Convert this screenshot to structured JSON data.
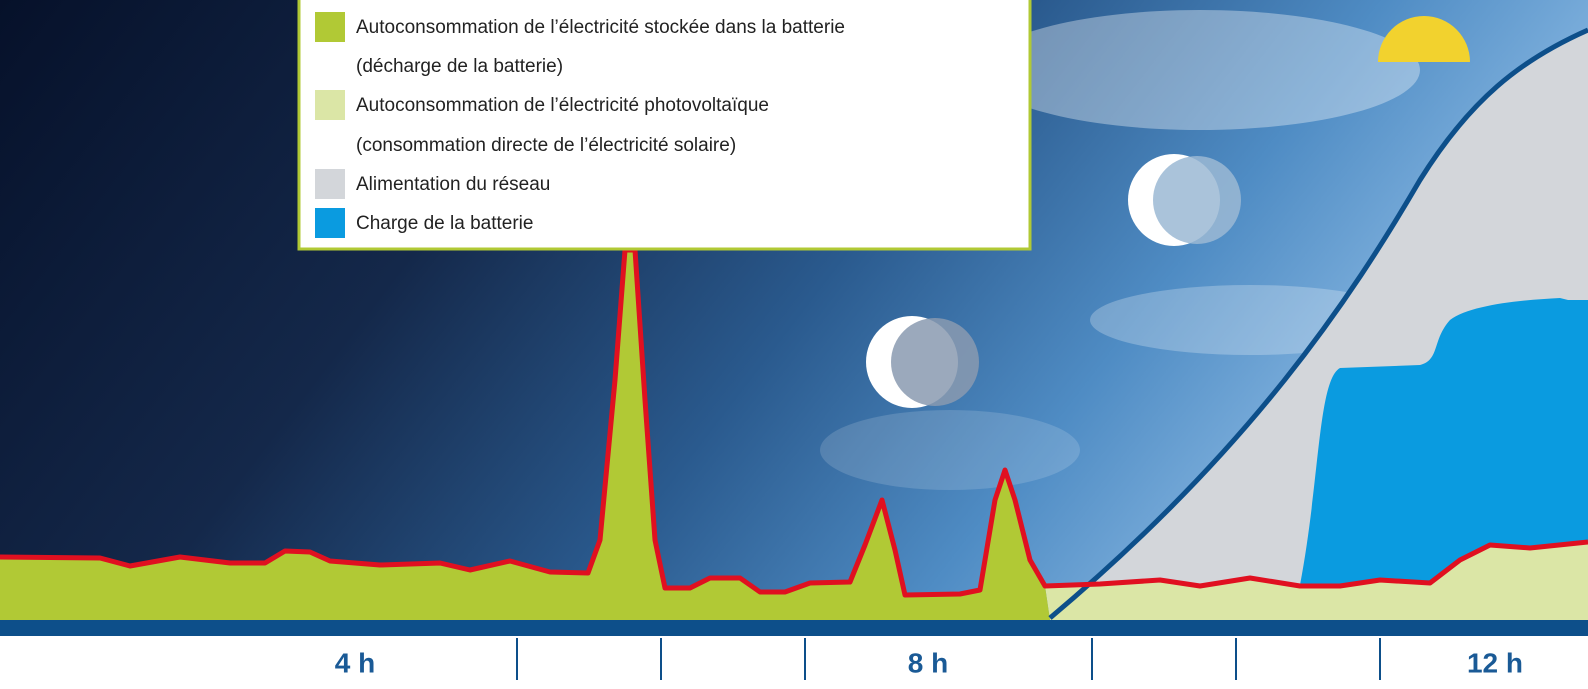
{
  "legend": {
    "items": [
      {
        "lines": [
          "Autoconsommation de l’électricité stockée dans la batterie",
          "(décharge de la batterie)"
        ]
      },
      {
        "lines": [
          "Autoconsommation de l’électricité photovoltaïque",
          "(consommation directe de l’électricité solaire)"
        ]
      },
      {
        "lines": [
          "Alimentation du réseau"
        ]
      },
      {
        "lines": [
          "Charge de la batterie"
        ]
      }
    ]
  },
  "time_axis": {
    "labels": [
      "4 h",
      "8 h",
      "12 h"
    ]
  }
}
